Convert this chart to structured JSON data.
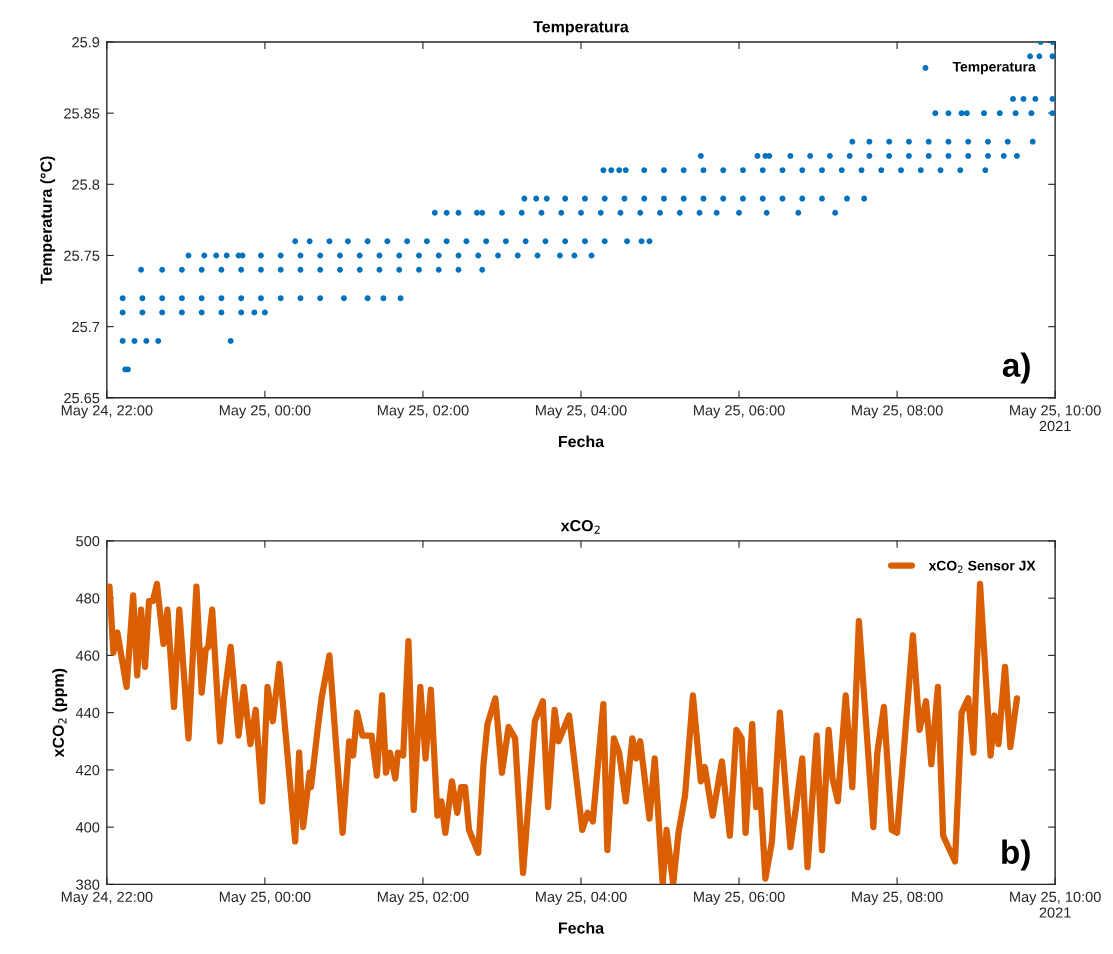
{
  "chart_data": [
    {
      "type": "scatter",
      "title": "Temperatura",
      "xlabel": "Fecha",
      "ylabel": "Temperatura (°C)",
      "legend": "top right",
      "marker": "circle",
      "grid": false,
      "xlim": [
        "2021-05-24T22:00",
        "2021-05-25T10:00"
      ],
      "xticks": [
        {
          "value": "2021-05-24T22:00",
          "label": "May 24, 22:00"
        },
        {
          "value": "2021-05-25T00:00",
          "label": "May 25, 00:00"
        },
        {
          "value": "2021-05-25T02:00",
          "label": "May 25, 02:00"
        },
        {
          "value": "2021-05-25T04:00",
          "label": "May 25, 04:00"
        },
        {
          "value": "2021-05-25T06:00",
          "label": "May 25, 06:00"
        },
        {
          "value": "2021-05-25T08:00",
          "label": "May 25, 08:00"
        },
        {
          "value": "2021-05-25T10:00",
          "label": "May 25, 10:00\n2021"
        }
      ],
      "ylim": [
        25.65,
        25.9
      ],
      "yticks": [
        25.65,
        25.7,
        25.75,
        25.8,
        25.85,
        25.9
      ],
      "annotations": [
        "a)"
      ],
      "series": [
        {
          "name": "Temperatura",
          "color": "#0072bd",
          "x": [
            "2021-05-24T22:14",
            "2021-05-24T22:16",
            "2021-05-24T22:12",
            "2021-05-24T22:21",
            "2021-05-24T22:30",
            "2021-05-24T22:39",
            "2021-05-24T23:34",
            "2021-05-24T22:12",
            "2021-05-24T22:27",
            "2021-05-24T22:42",
            "2021-05-24T22:57",
            "2021-05-24T23:12",
            "2021-05-24T23:27",
            "2021-05-24T23:42",
            "2021-05-24T23:52",
            "2021-05-25T00:00",
            "2021-05-24T22:12",
            "2021-05-24T22:27",
            "2021-05-24T22:42",
            "2021-05-24T22:57",
            "2021-05-24T23:12",
            "2021-05-24T23:27",
            "2021-05-24T23:42",
            "2021-05-24T23:57",
            "2021-05-25T00:12",
            "2021-05-25T00:27",
            "2021-05-25T00:42",
            "2021-05-25T01:00",
            "2021-05-25T01:18",
            "2021-05-25T01:30",
            "2021-05-25T01:43",
            "2021-05-24T22:26",
            "2021-05-24T22:42",
            "2021-05-24T22:57",
            "2021-05-24T23:12",
            "2021-05-24T23:27",
            "2021-05-24T23:42",
            "2021-05-24T23:57",
            "2021-05-25T00:12",
            "2021-05-25T00:27",
            "2021-05-25T00:42",
            "2021-05-25T00:57",
            "2021-05-25T01:12",
            "2021-05-25T01:27",
            "2021-05-25T01:42",
            "2021-05-25T01:57",
            "2021-05-25T02:12",
            "2021-05-25T02:27",
            "2021-05-25T02:45",
            "2021-05-24T23:02",
            "2021-05-24T23:14",
            "2021-05-24T23:23",
            "2021-05-24T23:31",
            "2021-05-24T23:40",
            "2021-05-24T23:43",
            "2021-05-24T23:57",
            "2021-05-25T00:12",
            "2021-05-25T00:27",
            "2021-05-25T00:42",
            "2021-05-25T00:57",
            "2021-05-25T01:12",
            "2021-05-25T01:27",
            "2021-05-25T01:42",
            "2021-05-25T01:57",
            "2021-05-25T02:12",
            "2021-05-25T02:27",
            "2021-05-25T02:42",
            "2021-05-25T02:57",
            "2021-05-25T03:12",
            "2021-05-25T03:27",
            "2021-05-25T03:44",
            "2021-05-25T03:55",
            "2021-05-25T04:08",
            "2021-05-25T00:23",
            "2021-05-25T00:34",
            "2021-05-25T00:49",
            "2021-05-25T01:03",
            "2021-05-25T01:18",
            "2021-05-25T01:33",
            "2021-05-25T01:48",
            "2021-05-25T02:03",
            "2021-05-25T02:18",
            "2021-05-25T02:33",
            "2021-05-25T02:48",
            "2021-05-25T03:03",
            "2021-05-25T03:18",
            "2021-05-25T03:33",
            "2021-05-25T03:48",
            "2021-05-25T04:03",
            "2021-05-25T04:18",
            "2021-05-25T04:35",
            "2021-05-25T04:46",
            "2021-05-25T04:52",
            "2021-05-25T02:09",
            "2021-05-25T02:18",
            "2021-05-25T02:27",
            "2021-05-25T02:41",
            "2021-05-25T02:45",
            "2021-05-25T03:00",
            "2021-05-25T03:15",
            "2021-05-25T03:30",
            "2021-05-25T03:45",
            "2021-05-25T04:00",
            "2021-05-25T04:15",
            "2021-05-25T04:30",
            "2021-05-25T04:45",
            "2021-05-25T05:00",
            "2021-05-25T05:15",
            "2021-05-25T05:30",
            "2021-05-25T05:43",
            "2021-05-25T06:00",
            "2021-05-25T06:21",
            "2021-05-25T06:45",
            "2021-05-25T07:13",
            "2021-05-25T03:17",
            "2021-05-25T03:26",
            "2021-05-25T03:34",
            "2021-05-25T03:48",
            "2021-05-25T04:03",
            "2021-05-25T04:18",
            "2021-05-25T04:33",
            "2021-05-25T04:48",
            "2021-05-25T05:03",
            "2021-05-25T05:18",
            "2021-05-25T05:33",
            "2021-05-25T05:48",
            "2021-05-25T06:03",
            "2021-05-25T06:18",
            "2021-05-25T06:33",
            "2021-05-25T06:48",
            "2021-05-25T07:03",
            "2021-05-25T07:22",
            "2021-05-25T07:35",
            "2021-05-25T04:17",
            "2021-05-25T04:23",
            "2021-05-25T04:29",
            "2021-05-25T04:34",
            "2021-05-25T04:48",
            "2021-05-25T05:03",
            "2021-05-25T05:18",
            "2021-05-25T05:33",
            "2021-05-25T05:48",
            "2021-05-25T06:03",
            "2021-05-25T06:18",
            "2021-05-25T06:33",
            "2021-05-25T06:48",
            "2021-05-25T07:03",
            "2021-05-25T07:18",
            "2021-05-25T07:33",
            "2021-05-25T07:48",
            "2021-05-25T08:03",
            "2021-05-25T08:18",
            "2021-05-25T08:33",
            "2021-05-25T08:48",
            "2021-05-25T09:07",
            "2021-05-25T05:31",
            "2021-05-25T06:14",
            "2021-05-25T06:20",
            "2021-05-25T06:23",
            "2021-05-25T06:39",
            "2021-05-25T06:54",
            "2021-05-25T07:09",
            "2021-05-25T07:24",
            "2021-05-25T07:39",
            "2021-05-25T07:54",
            "2021-05-25T08:09",
            "2021-05-25T08:24",
            "2021-05-25T08:39",
            "2021-05-25T08:54",
            "2021-05-25T09:09",
            "2021-05-25T09:21",
            "2021-05-25T09:31",
            "2021-05-25T07:26",
            "2021-05-25T07:39",
            "2021-05-25T07:54",
            "2021-05-25T08:09",
            "2021-05-25T08:24",
            "2021-05-25T08:39",
            "2021-05-25T08:54",
            "2021-05-25T09:09",
            "2021-05-25T09:24",
            "2021-05-25T09:43",
            "2021-05-25T08:29",
            "2021-05-25T08:39",
            "2021-05-25T08:49",
            "2021-05-25T08:53",
            "2021-05-25T09:06",
            "2021-05-25T09:18",
            "2021-05-25T09:30",
            "2021-05-25T09:42",
            "2021-05-25T09:58",
            "2021-05-25T09:28",
            "2021-05-25T09:36",
            "2021-05-25T09:45",
            "2021-05-25T09:58",
            "2021-05-25T09:41",
            "2021-05-25T09:48",
            "2021-05-25T09:58",
            "2021-05-25T09:49",
            "2021-05-25T09:58"
          ],
          "values": [
            25.67,
            25.67,
            25.69,
            25.69,
            25.69,
            25.69,
            25.69,
            25.71,
            25.71,
            25.71,
            25.71,
            25.71,
            25.71,
            25.71,
            25.71,
            25.71,
            25.72,
            25.72,
            25.72,
            25.72,
            25.72,
            25.72,
            25.72,
            25.72,
            25.72,
            25.72,
            25.72,
            25.72,
            25.72,
            25.72,
            25.72,
            25.74,
            25.74,
            25.74,
            25.74,
            25.74,
            25.74,
            25.74,
            25.74,
            25.74,
            25.74,
            25.74,
            25.74,
            25.74,
            25.74,
            25.74,
            25.74,
            25.74,
            25.74,
            25.75,
            25.75,
            25.75,
            25.75,
            25.75,
            25.75,
            25.75,
            25.75,
            25.75,
            25.75,
            25.75,
            25.75,
            25.75,
            25.75,
            25.75,
            25.75,
            25.75,
            25.75,
            25.75,
            25.75,
            25.75,
            25.75,
            25.75,
            25.75,
            25.76,
            25.76,
            25.76,
            25.76,
            25.76,
            25.76,
            25.76,
            25.76,
            25.76,
            25.76,
            25.76,
            25.76,
            25.76,
            25.76,
            25.76,
            25.76,
            25.76,
            25.76,
            25.76,
            25.76,
            25.78,
            25.78,
            25.78,
            25.78,
            25.78,
            25.78,
            25.78,
            25.78,
            25.78,
            25.78,
            25.78,
            25.78,
            25.78,
            25.78,
            25.78,
            25.78,
            25.78,
            25.78,
            25.78,
            25.78,
            25.78,
            25.79,
            25.79,
            25.79,
            25.79,
            25.79,
            25.79,
            25.79,
            25.79,
            25.79,
            25.79,
            25.79,
            25.79,
            25.79,
            25.79,
            25.79,
            25.79,
            25.79,
            25.79,
            25.79,
            25.81,
            25.81,
            25.81,
            25.81,
            25.81,
            25.81,
            25.81,
            25.81,
            25.81,
            25.81,
            25.81,
            25.81,
            25.81,
            25.81,
            25.81,
            25.81,
            25.81,
            25.81,
            25.81,
            25.81,
            25.81,
            25.81,
            25.82,
            25.82,
            25.82,
            25.82,
            25.82,
            25.82,
            25.82,
            25.82,
            25.82,
            25.82,
            25.82,
            25.82,
            25.82,
            25.82,
            25.82,
            25.82,
            25.82,
            25.83,
            25.83,
            25.83,
            25.83,
            25.83,
            25.83,
            25.83,
            25.83,
            25.83,
            25.83,
            25.85,
            25.85,
            25.85,
            25.85,
            25.85,
            25.85,
            25.85,
            25.85,
            25.85,
            25.86,
            25.86,
            25.86,
            25.86,
            25.89,
            25.89,
            25.89,
            25.9,
            25.9
          ]
        }
      ]
    },
    {
      "type": "line",
      "title": "xCO$_{2}$",
      "xlabel": "Fecha",
      "ylabel": "xCO$_{2}$ (ppm)",
      "legend": "top right",
      "line_style": "solid",
      "grid": false,
      "xlim": [
        "2021-05-24T22:00",
        "2021-05-25T10:00"
      ],
      "xticks": [
        {
          "value": "2021-05-24T22:00",
          "label": "May 24, 22:00"
        },
        {
          "value": "2021-05-25T00:00",
          "label": "May 25, 00:00"
        },
        {
          "value": "2021-05-25T02:00",
          "label": "May 25, 02:00"
        },
        {
          "value": "2021-05-25T04:00",
          "label": "May 25, 04:00"
        },
        {
          "value": "2021-05-25T06:00",
          "label": "May 25, 06:00"
        },
        {
          "value": "2021-05-25T08:00",
          "label": "May 25, 08:00"
        },
        {
          "value": "2021-05-25T10:00",
          "label": "May 25, 10:00\n2021"
        }
      ],
      "ylim": [
        380,
        500
      ],
      "yticks": [
        380,
        400,
        420,
        440,
        460,
        480,
        500
      ],
      "annotations": [
        "b)"
      ],
      "series": [
        {
          "name": "xCO$_{2}$ Sensor JX",
          "color": "#d95f02",
          "x": [
            "2021-05-24T22:02",
            "2021-05-24T22:05",
            "2021-05-24T22:08",
            "2021-05-24T22:15",
            "2021-05-24T22:20",
            "2021-05-24T22:23",
            "2021-05-24T22:26",
            "2021-05-24T22:29",
            "2021-05-24T22:32",
            "2021-05-24T22:35",
            "2021-05-24T22:38",
            "2021-05-24T22:43",
            "2021-05-24T22:46",
            "2021-05-24T22:51",
            "2021-05-24T22:55",
            "2021-05-24T23:02",
            "2021-05-24T23:08",
            "2021-05-24T23:12",
            "2021-05-24T23:15",
            "2021-05-24T23:17",
            "2021-05-24T23:20",
            "2021-05-24T23:26",
            "2021-05-24T23:29",
            "2021-05-24T23:34",
            "2021-05-24T23:40",
            "2021-05-24T23:44",
            "2021-05-24T23:49",
            "2021-05-24T23:53",
            "2021-05-24T23:58",
            "2021-05-25T00:02",
            "2021-05-25T00:06",
            "2021-05-25T00:11",
            "2021-05-25T00:23",
            "2021-05-25T00:26",
            "2021-05-25T00:29",
            "2021-05-25T00:34",
            "2021-05-25T00:35",
            "2021-05-25T00:40",
            "2021-05-25T00:43",
            "2021-05-25T00:49",
            "2021-05-25T00:59",
            "2021-05-25T01:04",
            "2021-05-25T01:07",
            "2021-05-25T01:10",
            "2021-05-25T01:14",
            "2021-05-25T01:21",
            "2021-05-25T01:25",
            "2021-05-25T01:29",
            "2021-05-25T01:32",
            "2021-05-25T01:35",
            "2021-05-25T01:39",
            "2021-05-25T01:41",
            "2021-05-25T01:45",
            "2021-05-25T01:49",
            "2021-05-25T01:53",
            "2021-05-25T01:58",
            "2021-05-25T02:02",
            "2021-05-25T02:06",
            "2021-05-25T02:11",
            "2021-05-25T02:14",
            "2021-05-25T02:17",
            "2021-05-25T02:22",
            "2021-05-25T02:26",
            "2021-05-25T02:29",
            "2021-05-25T02:32",
            "2021-05-25T02:35",
            "2021-05-25T02:42",
            "2021-05-25T02:46",
            "2021-05-25T02:49",
            "2021-05-25T02:55",
            "2021-05-25T03:00",
            "2021-05-25T03:05",
            "2021-05-25T03:10",
            "2021-05-25T03:16",
            "2021-05-25T03:25",
            "2021-05-25T03:31",
            "2021-05-25T03:35",
            "2021-05-25T03:40",
            "2021-05-25T03:43",
            "2021-05-25T03:51",
            "2021-05-25T04:01",
            "2021-05-25T04:05",
            "2021-05-25T04:09",
            "2021-05-25T04:17",
            "2021-05-25T04:20",
            "2021-05-25T04:25",
            "2021-05-25T04:29",
            "2021-05-25T04:34",
            "2021-05-25T04:39",
            "2021-05-25T04:42",
            "2021-05-25T04:45",
            "2021-05-25T04:52",
            "2021-05-25T04:56",
            "2021-05-25T05:02",
            "2021-05-25T05:05",
            "2021-05-25T05:10",
            "2021-05-25T05:14",
            "2021-05-25T05:19",
            "2021-05-25T05:25",
            "2021-05-25T05:31",
            "2021-05-25T05:34",
            "2021-05-25T05:40",
            "2021-05-25T05:47",
            "2021-05-25T05:53",
            "2021-05-25T05:58",
            "2021-05-25T06:02",
            "2021-05-25T06:05",
            "2021-05-25T06:10",
            "2021-05-25T06:13",
            "2021-05-25T06:16",
            "2021-05-25T06:20",
            "2021-05-25T06:25",
            "2021-05-25T06:31",
            "2021-05-25T06:39",
            "2021-05-25T06:43",
            "2021-05-25T06:48",
            "2021-05-25T06:52",
            "2021-05-25T06:59",
            "2021-05-25T07:03",
            "2021-05-25T07:08",
            "2021-05-25T07:11",
            "2021-05-25T07:15",
            "2021-05-25T07:21",
            "2021-05-25T07:26",
            "2021-05-25T07:31",
            "2021-05-25T07:42",
            "2021-05-25T07:45",
            "2021-05-25T07:50",
            "2021-05-25T07:56",
            "2021-05-25T08:00",
            "2021-05-25T08:05",
            "2021-05-25T08:12",
            "2021-05-25T08:17",
            "2021-05-25T08:22",
            "2021-05-25T08:26",
            "2021-05-25T08:31",
            "2021-05-25T08:35",
            "2021-05-25T08:40",
            "2021-05-25T08:44",
            "2021-05-25T08:49",
            "2021-05-25T08:54",
            "2021-05-25T08:58",
            "2021-05-25T09:03",
            "2021-05-25T09:11",
            "2021-05-25T09:14",
            "2021-05-25T09:17",
            "2021-05-25T09:22",
            "2021-05-25T09:26",
            "2021-05-25T09:31"
          ],
          "values": [
            484,
            461,
            468,
            449,
            481,
            453,
            476,
            456,
            479,
            479,
            485,
            464,
            476,
            442,
            476,
            431,
            484,
            447,
            462,
            463,
            476,
            430,
            445,
            463,
            432,
            449,
            429,
            441,
            409,
            449,
            437,
            457,
            395,
            426,
            400,
            419,
            414,
            434,
            445,
            460,
            398,
            430,
            425,
            440,
            432,
            432,
            418,
            446,
            419,
            426,
            417,
            426,
            425,
            465,
            406,
            449,
            424,
            448,
            404,
            409,
            398,
            416,
            405,
            414,
            414,
            399,
            391,
            422,
            436,
            445,
            419,
            435,
            431,
            384,
            437,
            444,
            407,
            441,
            430,
            439,
            399,
            405,
            402,
            443,
            392,
            431,
            426,
            409,
            431,
            424,
            430,
            403,
            424,
            380,
            399,
            380,
            398,
            411,
            446,
            416,
            421,
            404,
            423,
            397,
            434,
            431,
            398,
            436,
            407,
            413,
            382,
            395,
            440,
            393,
            406,
            424,
            386,
            432,
            392,
            434,
            417,
            409,
            446,
            414,
            472,
            400,
            426,
            442,
            399,
            398,
            426,
            467,
            434,
            444,
            422,
            449,
            397,
            392,
            388,
            440,
            445,
            426,
            485,
            425,
            439,
            429,
            456,
            428,
            445
          ]
        }
      ]
    }
  ]
}
